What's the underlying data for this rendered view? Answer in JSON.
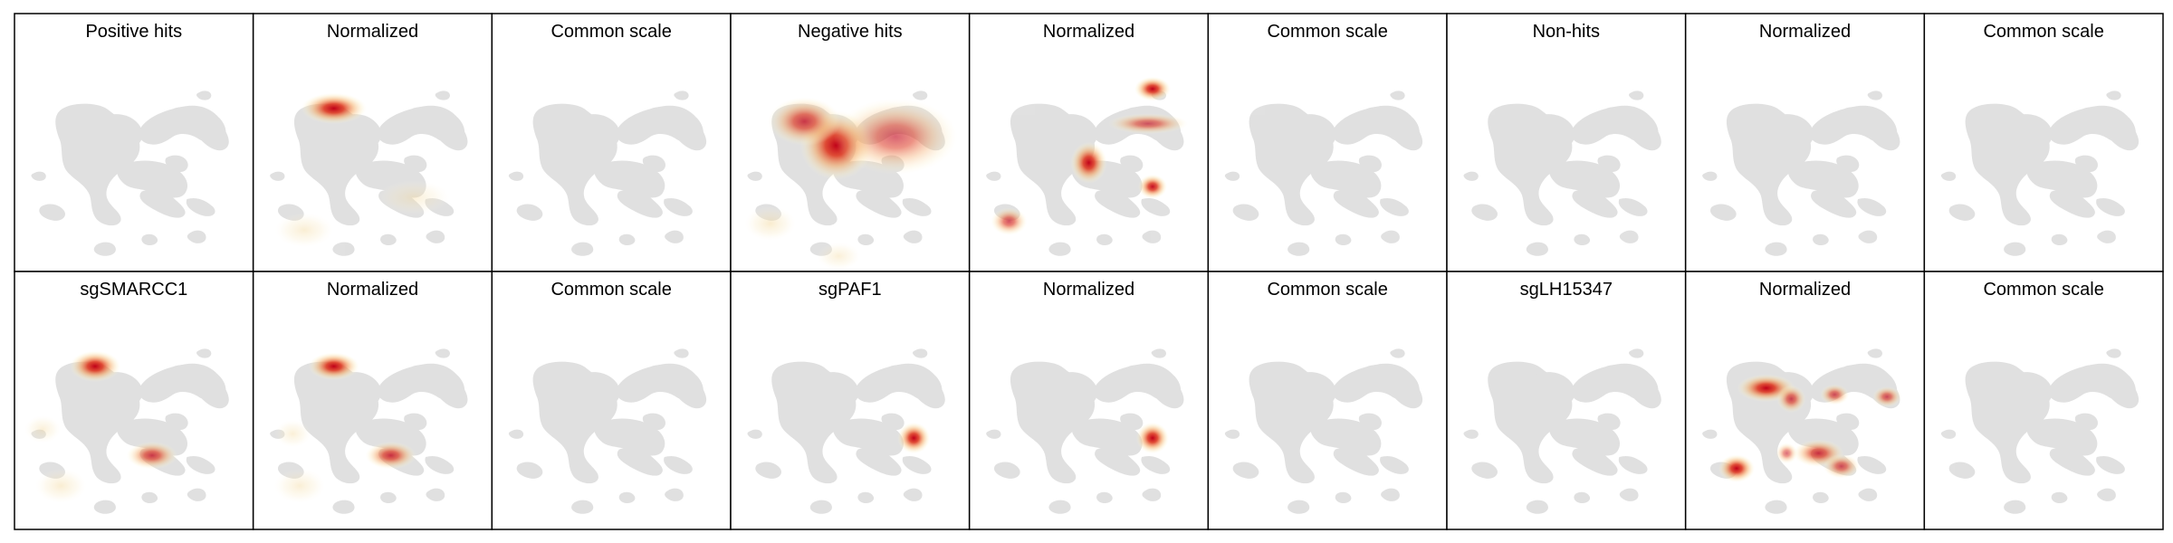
{
  "chart_data": {
    "type": "density-grid",
    "grid_rows": 2,
    "grid_cols": 9,
    "panels": [
      {
        "title": "Positive hits",
        "blobs": []
      },
      {
        "title": "Normalized",
        "blobs": [
          {
            "x": 0.33,
            "y": 0.27,
            "peak": 1.0,
            "sx": 0.09,
            "sy": 0.045
          },
          {
            "x": 0.2,
            "y": 0.83,
            "peak": 0.18,
            "sx": 0.08,
            "sy": 0.05
          },
          {
            "x": 0.68,
            "y": 0.68,
            "peak": 0.12,
            "sx": 0.1,
            "sy": 0.05
          }
        ]
      },
      {
        "title": "Common scale",
        "blobs": []
      },
      {
        "title": "Negative hits",
        "blobs": [
          {
            "x": 0.44,
            "y": 0.44,
            "peak": 1.0,
            "sx": 0.1,
            "sy": 0.1
          },
          {
            "x": 0.3,
            "y": 0.33,
            "peak": 0.55,
            "sx": 0.1,
            "sy": 0.07
          },
          {
            "x": 0.7,
            "y": 0.4,
            "peak": 0.35,
            "sx": 0.17,
            "sy": 0.11
          },
          {
            "x": 0.15,
            "y": 0.8,
            "peak": 0.25,
            "sx": 0.07,
            "sy": 0.05
          },
          {
            "x": 0.45,
            "y": 0.95,
            "peak": 0.12,
            "sx": 0.06,
            "sy": 0.04
          }
        ]
      },
      {
        "title": "Normalized",
        "blobs": [
          {
            "x": 0.78,
            "y": 0.18,
            "peak": 1.0,
            "sx": 0.05,
            "sy": 0.035
          },
          {
            "x": 0.5,
            "y": 0.52,
            "peak": 0.85,
            "sx": 0.05,
            "sy": 0.06
          },
          {
            "x": 0.78,
            "y": 0.63,
            "peak": 0.8,
            "sx": 0.04,
            "sy": 0.035
          },
          {
            "x": 0.76,
            "y": 0.34,
            "peak": 0.4,
            "sx": 0.11,
            "sy": 0.03
          },
          {
            "x": 0.15,
            "y": 0.79,
            "peak": 0.45,
            "sx": 0.05,
            "sy": 0.04
          }
        ]
      },
      {
        "title": "Common scale",
        "blobs": []
      },
      {
        "title": "Non-hits",
        "blobs": []
      },
      {
        "title": "Normalized",
        "blobs": []
      },
      {
        "title": "Common scale",
        "blobs": []
      },
      {
        "title": "sgSMARCC1",
        "blobs": [
          {
            "x": 0.33,
            "y": 0.27,
            "peak": 1.0,
            "sx": 0.07,
            "sy": 0.045
          },
          {
            "x": 0.58,
            "y": 0.68,
            "peak": 0.55,
            "sx": 0.07,
            "sy": 0.04
          },
          {
            "x": 0.18,
            "y": 0.82,
            "peak": 0.2,
            "sx": 0.07,
            "sy": 0.05
          },
          {
            "x": 0.1,
            "y": 0.56,
            "peak": 0.12,
            "sx": 0.05,
            "sy": 0.04
          }
        ]
      },
      {
        "title": "Normalized",
        "blobs": [
          {
            "x": 0.33,
            "y": 0.27,
            "peak": 1.0,
            "sx": 0.07,
            "sy": 0.04
          },
          {
            "x": 0.58,
            "y": 0.68,
            "peak": 0.6,
            "sx": 0.07,
            "sy": 0.04
          },
          {
            "x": 0.18,
            "y": 0.82,
            "peak": 0.15,
            "sx": 0.07,
            "sy": 0.05
          },
          {
            "x": 0.15,
            "y": 0.58,
            "peak": 0.12,
            "sx": 0.05,
            "sy": 0.04
          }
        ]
      },
      {
        "title": "Common scale",
        "blobs": []
      },
      {
        "title": "sgPAF1",
        "blobs": [
          {
            "x": 0.78,
            "y": 0.6,
            "peak": 1.0,
            "sx": 0.045,
            "sy": 0.045
          }
        ]
      },
      {
        "title": "Normalized",
        "blobs": [
          {
            "x": 0.78,
            "y": 0.6,
            "peak": 1.0,
            "sx": 0.045,
            "sy": 0.045
          }
        ]
      },
      {
        "title": "Common scale",
        "blobs": []
      },
      {
        "title": "sgLH15347",
        "blobs": []
      },
      {
        "title": "Normalized",
        "blobs": [
          {
            "x": 0.33,
            "y": 0.37,
            "peak": 1.0,
            "sx": 0.08,
            "sy": 0.04
          },
          {
            "x": 0.44,
            "y": 0.42,
            "peak": 0.5,
            "sx": 0.04,
            "sy": 0.04
          },
          {
            "x": 0.2,
            "y": 0.74,
            "peak": 0.95,
            "sx": 0.05,
            "sy": 0.04
          },
          {
            "x": 0.56,
            "y": 0.67,
            "peak": 0.6,
            "sx": 0.07,
            "sy": 0.04
          },
          {
            "x": 0.66,
            "y": 0.73,
            "peak": 0.45,
            "sx": 0.05,
            "sy": 0.035
          },
          {
            "x": 0.63,
            "y": 0.4,
            "peak": 0.45,
            "sx": 0.04,
            "sy": 0.03
          },
          {
            "x": 0.86,
            "y": 0.41,
            "peak": 0.45,
            "sx": 0.04,
            "sy": 0.03
          },
          {
            "x": 0.42,
            "y": 0.67,
            "peak": 0.3,
            "sx": 0.03,
            "sy": 0.03
          }
        ]
      },
      {
        "title": "Common scale",
        "blobs": []
      }
    ]
  }
}
